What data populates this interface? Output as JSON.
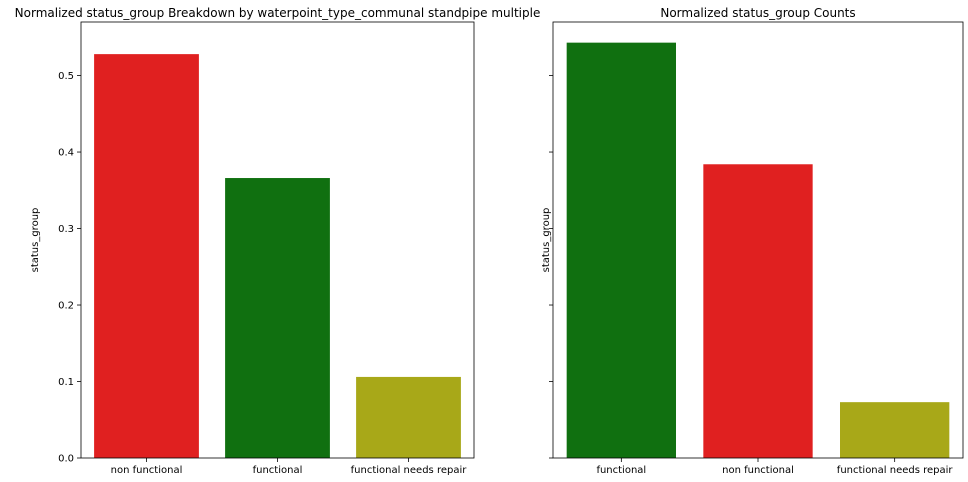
{
  "chart_data": [
    {
      "type": "bar",
      "title": "Normalized status_group Breakdown by waterpoint_type_communal standpipe multiple",
      "xlabel": "",
      "ylabel": "status_group",
      "categories": [
        "non functional",
        "functional",
        "functional needs repair"
      ],
      "values": [
        0.528,
        0.366,
        0.106
      ],
      "colors": [
        "#e02020",
        "#107010",
        "#a8a818"
      ],
      "ylim": [
        0,
        0.57
      ],
      "yticks": [
        0.0,
        0.1,
        0.2,
        0.3,
        0.4,
        0.5
      ],
      "ytick_labels": [
        "0.0",
        "0.1",
        "0.2",
        "0.3",
        "0.4",
        "0.5"
      ],
      "grid": false
    },
    {
      "type": "bar",
      "title": "Normalized status_group Counts",
      "xlabel": "",
      "ylabel": "status_group",
      "categories": [
        "functional",
        "non functional",
        "functional needs repair"
      ],
      "values": [
        0.543,
        0.384,
        0.073
      ],
      "colors": [
        "#107010",
        "#e02020",
        "#a8a818"
      ],
      "ylim": [
        0,
        0.57
      ],
      "yticks": [
        0.0,
        0.1,
        0.2,
        0.3,
        0.4,
        0.5
      ],
      "ytick_labels": [],
      "grid": false
    }
  ]
}
